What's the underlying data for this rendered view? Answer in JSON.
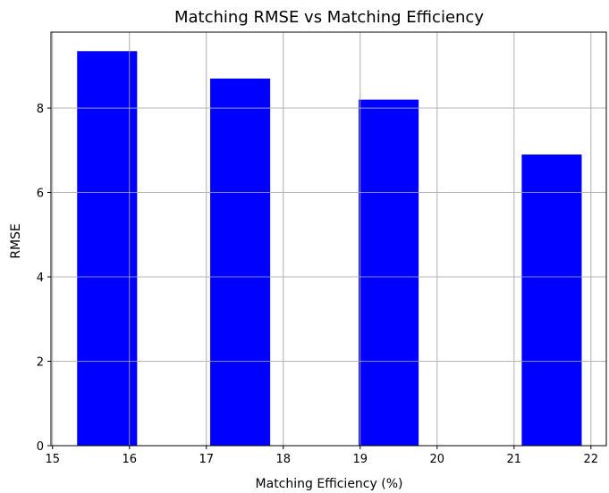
{
  "chart_data": {
    "type": "bar",
    "title": "Matching RMSE vs Matching Efficiency",
    "xlabel": "Matching Efficiency (%)",
    "ylabel": "RMSE",
    "xlim": [
      15,
      22
    ],
    "ylim": [
      0,
      9
    ],
    "xticks": [
      15,
      16,
      17,
      18,
      19,
      20,
      21,
      22
    ],
    "yticks": [
      0,
      2,
      4,
      6,
      8
    ],
    "bars": [
      {
        "x_start": 15.32,
        "x_end": 16.1,
        "value": 9.35
      },
      {
        "x_start": 17.05,
        "x_end": 17.83,
        "value": 8.7
      },
      {
        "x_start": 18.98,
        "x_end": 19.76,
        "value": 8.2
      },
      {
        "x_start": 21.1,
        "x_end": 21.88,
        "value": 6.9
      }
    ],
    "bar_color": "#0000ff",
    "grid": true
  }
}
